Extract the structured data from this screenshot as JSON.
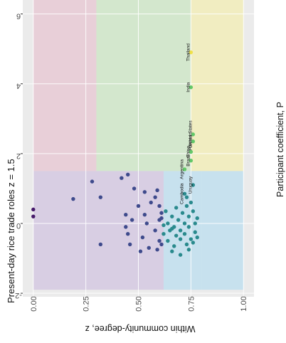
{
  "chart_data": {
    "type": "scatter",
    "title": "Present-day rice trade roles z = 1.5",
    "xlabel": "Within community-degree, z",
    "ylabel": "Participant coefficient, P",
    "x_axis_reversed": true,
    "xlim": [
      6.4,
      -2.1
    ],
    "ylim": [
      -0.05,
      1.05
    ],
    "x_ticks": [
      6,
      4,
      2,
      0,
      -2
    ],
    "x_tick_labels": [
      "6",
      "4",
      "2",
      "0",
      "-2"
    ],
    "y_ticks": [
      0.0,
      0.25,
      0.5,
      0.75,
      1.0
    ],
    "y_tick_labels": [
      "0.00",
      "0.25",
      "0.50",
      "0.75",
      "1.00"
    ],
    "grid": true,
    "orientation": "rotated-90-ccw",
    "region_colors": [
      "#e5b8c8",
      "#bfe3b5",
      "#f5ef9e",
      "#c8b6dd",
      "#aad8f0"
    ],
    "point_colors": [
      "#46196a",
      "#3e4a8c",
      "#2a8a8d",
      "#63c869",
      "#f0e14a"
    ],
    "labeled_points": [
      {
        "name": "Thailand",
        "z": 4.9,
        "p": 0.75
      },
      {
        "name": "India",
        "z": 3.9,
        "p": 0.75
      },
      {
        "name": "United States",
        "z": 2.55,
        "p": 0.76
      },
      {
        "name": "Pakistan",
        "z": 2.35,
        "p": 0.76
      },
      {
        "name": "China",
        "z": 2.05,
        "p": 0.75
      },
      {
        "name": "Brazil",
        "z": 1.8,
        "p": 0.75
      },
      {
        "name": "Argentina",
        "z": 1.55,
        "p": 0.72
      },
      {
        "name": "Uruguay",
        "z": 1.1,
        "p": 0.76
      },
      {
        "name": "Cambodia",
        "z": 0.85,
        "p": 0.72
      }
    ],
    "points": [
      {
        "z": 0.4,
        "p": 0.0
      },
      {
        "z": 0.2,
        "p": 0.0
      },
      {
        "z": 0.7,
        "p": 0.19
      },
      {
        "z": 1.2,
        "p": 0.28
      },
      {
        "z": 0.75,
        "p": 0.32
      },
      {
        "z": 1.3,
        "p": 0.42
      },
      {
        "z": -0.6,
        "p": 0.32
      },
      {
        "z": 1.4,
        "p": 0.45
      },
      {
        "z": 1.0,
        "p": 0.48
      },
      {
        "z": 0.5,
        "p": 0.5
      },
      {
        "z": 0.25,
        "p": 0.44
      },
      {
        "z": 0.1,
        "p": 0.47
      },
      {
        "z": -0.1,
        "p": 0.44
      },
      {
        "z": -0.3,
        "p": 0.45
      },
      {
        "z": -0.6,
        "p": 0.46
      },
      {
        "z": -0.8,
        "p": 0.51
      },
      {
        "z": 0.9,
        "p": 0.53
      },
      {
        "z": 0.6,
        "p": 0.56
      },
      {
        "z": 0.25,
        "p": 0.53
      },
      {
        "z": 0.0,
        "p": 0.54
      },
      {
        "z": -0.4,
        "p": 0.52
      },
      {
        "z": -0.7,
        "p": 0.55
      },
      {
        "z": 0.95,
        "p": 0.59
      },
      {
        "z": 0.75,
        "p": 0.58
      },
      {
        "z": 0.5,
        "p": 0.6
      },
      {
        "z": 0.3,
        "p": 0.61
      },
      {
        "z": 0.1,
        "p": 0.6
      },
      {
        "z": -0.2,
        "p": 0.58
      },
      {
        "z": -0.5,
        "p": 0.6
      },
      {
        "z": -0.75,
        "p": 0.59
      },
      {
        "z": 0.15,
        "p": 0.61
      },
      {
        "z": -0.05,
        "p": 0.62
      },
      {
        "z": -0.3,
        "p": 0.62
      },
      {
        "z": -0.6,
        "p": 0.61
      },
      {
        "z": 0.35,
        "p": 0.63
      },
      {
        "z": 0.0,
        "p": 0.64
      },
      {
        "z": -0.2,
        "p": 0.65
      },
      {
        "z": -0.5,
        "p": 0.64
      },
      {
        "z": -0.8,
        "p": 0.66
      },
      {
        "z": 0.2,
        "p": 0.66
      },
      {
        "z": -0.1,
        "p": 0.67
      },
      {
        "z": -0.35,
        "p": 0.68
      },
      {
        "z": -0.65,
        "p": 0.67
      },
      {
        "z": 0.45,
        "p": 0.68
      },
      {
        "z": 0.1,
        "p": 0.69
      },
      {
        "z": -0.2,
        "p": 0.7
      },
      {
        "z": -0.45,
        "p": 0.7
      },
      {
        "z": -0.9,
        "p": 0.7
      },
      {
        "z": 0.3,
        "p": 0.71
      },
      {
        "z": 0.0,
        "p": 0.72
      },
      {
        "z": -0.3,
        "p": 0.72
      },
      {
        "z": -0.6,
        "p": 0.73
      },
      {
        "z": 0.5,
        "p": 0.73
      },
      {
        "z": 0.2,
        "p": 0.74
      },
      {
        "z": -0.1,
        "p": 0.74
      },
      {
        "z": -0.45,
        "p": 0.75
      },
      {
        "z": -0.75,
        "p": 0.74
      },
      {
        "z": 0.35,
        "p": 0.76
      },
      {
        "z": 0.0,
        "p": 0.77
      },
      {
        "z": -0.25,
        "p": 0.77
      },
      {
        "z": -0.55,
        "p": 0.76
      },
      {
        "z": 0.15,
        "p": 0.78
      },
      {
        "z": -0.4,
        "p": 0.78
      },
      {
        "z": 0.6,
        "p": 0.75
      },
      {
        "z": 0.75,
        "p": 0.73
      },
      {
        "z": -0.15,
        "p": 0.66
      }
    ]
  }
}
